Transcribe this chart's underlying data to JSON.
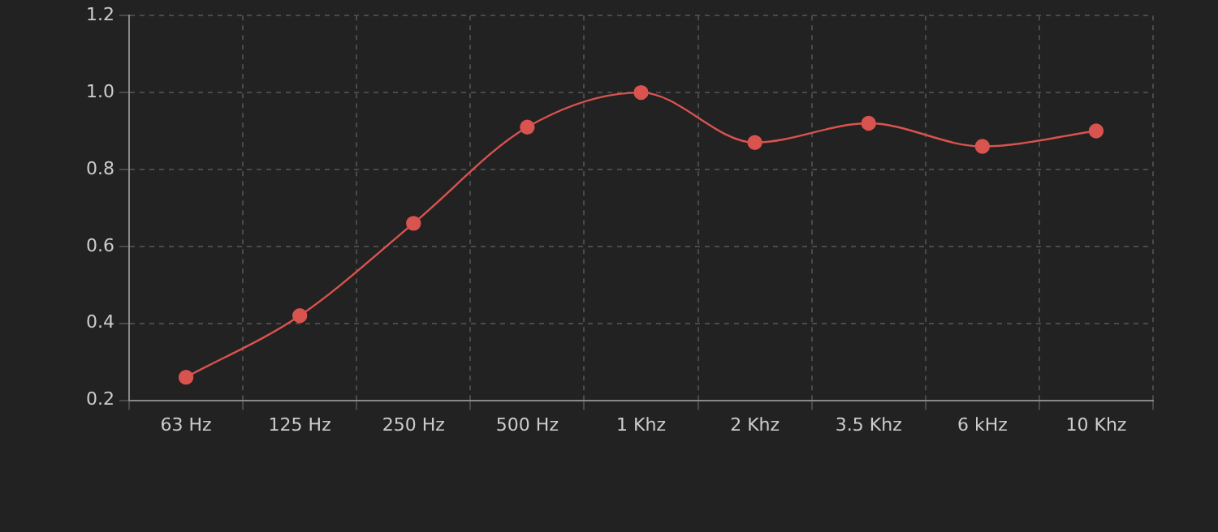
{
  "chart_data": {
    "type": "line",
    "categories": [
      "63 Hz",
      "125 Hz",
      "250 Hz",
      "500 Hz",
      "1 Khz",
      "2 Khz",
      "3.5 Khz",
      "6 kHz",
      "10 Khz"
    ],
    "series": [
      {
        "color": "#d9534f",
        "values": [
          0.26,
          0.42,
          0.66,
          0.91,
          1.0,
          0.87,
          0.92,
          0.86,
          0.9
        ]
      }
    ],
    "ylim": [
      0.2,
      1.2
    ],
    "yticks": [
      0.2,
      0.4,
      0.6,
      0.8,
      {
        "value": 1,
        "label": "1.0"
      },
      1.2
    ],
    "grid": true,
    "legend": false,
    "marker": "circle",
    "line_style": "solid"
  }
}
